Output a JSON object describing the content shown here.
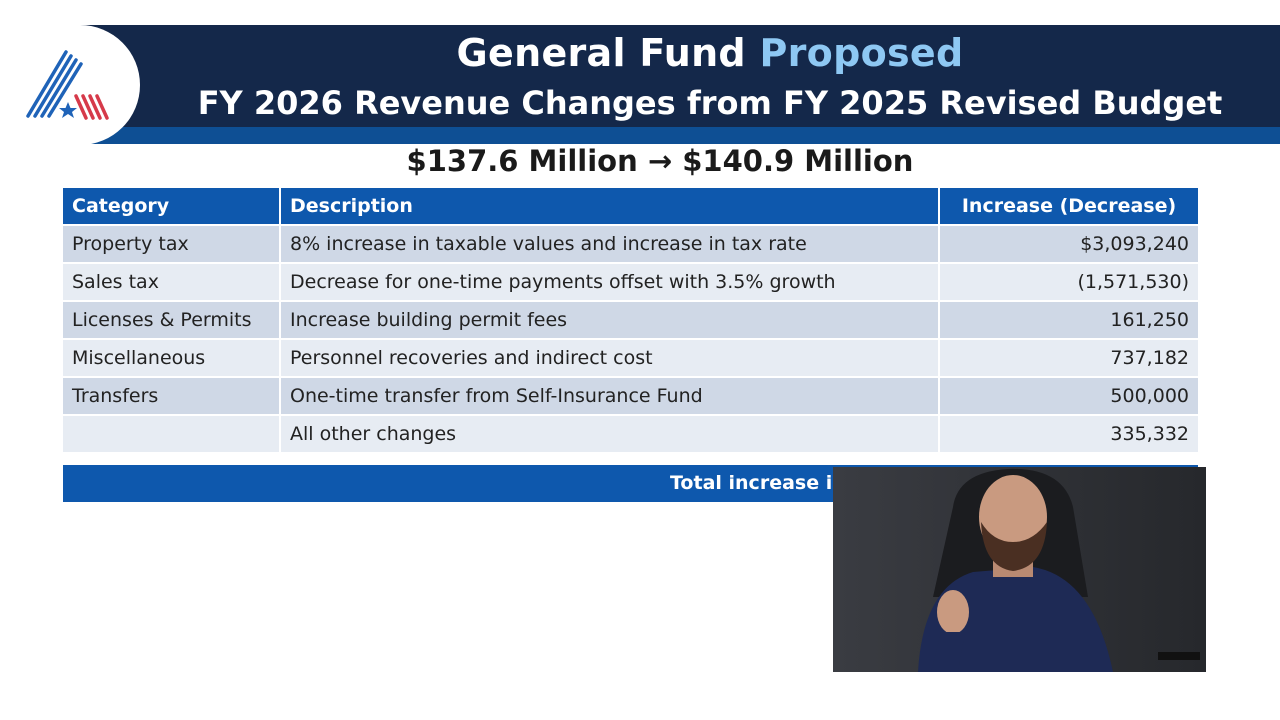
{
  "header": {
    "title_part1": "General Fund",
    "title_part2": "Proposed",
    "title_line2": "FY 2026 Revenue Changes from FY 2025 Revised Budget",
    "subtitle": "$137.6 Million → $140.9 Million"
  },
  "table": {
    "headers": [
      "Category",
      "Description",
      "Increase (Decrease)"
    ],
    "rows": [
      {
        "category": "Property tax",
        "description": "8% increase in taxable values and increase in tax rate",
        "amount": "$3,093,240"
      },
      {
        "category": "Sales tax",
        "description": "Decrease for one-time payments offset with 3.5% growth",
        "amount": "(1,571,530)"
      },
      {
        "category": "Licenses & Permits",
        "description": "Increase building permit fees",
        "amount": "161,250"
      },
      {
        "category": "Miscellaneous",
        "description": "Personnel recoveries and indirect cost",
        "amount": "737,182"
      },
      {
        "category": "Transfers",
        "description": "One-time transfer from Self-Insurance Fund",
        "amount": "500,000"
      },
      {
        "category": "",
        "description": "All other changes",
        "amount": "335,332"
      }
    ],
    "total_label": "Total increase in"
  },
  "colors": {
    "banner": "#14284a",
    "accent_text": "#8ec8f3",
    "table_header": "#0e58ad",
    "row_odd": "#cfd8e6",
    "row_even": "#e7ecf3"
  },
  "icons": {
    "logo": "flag-star-logo-icon"
  }
}
